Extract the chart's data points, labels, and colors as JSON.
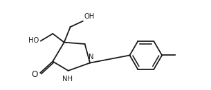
{
  "bg_color": "#ffffff",
  "line_color": "#1a1a1a",
  "line_width": 1.3,
  "label_fontsize": 7.2,
  "figsize": [
    3.05,
    1.31
  ],
  "dpi": 100,
  "xlim": [
    0.0,
    10.2
  ],
  "ylim": [
    0.3,
    4.6
  ]
}
